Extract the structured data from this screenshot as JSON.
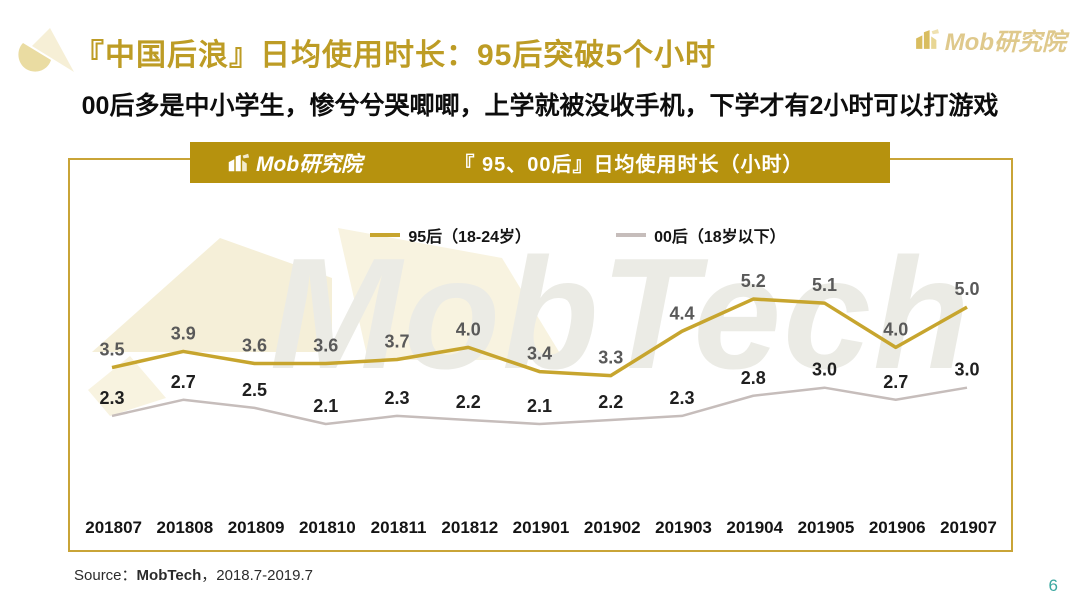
{
  "header": {
    "title": "『中国后浪』日均使用时长：95后突破5个小时",
    "subtitle": "00后多是中小学生，惨兮兮哭唧唧，上学就被没收手机，下学才有2小时可以打游戏"
  },
  "brand": {
    "name": "Mob研究院"
  },
  "card": {
    "logo_text": "Mob研究院",
    "title": "『 95、00后』日均使用时长（小时）",
    "watermark": "MobTech"
  },
  "chart_data": {
    "type": "line",
    "title": "『 95、00后』日均使用时长（小时）",
    "unit": "小时",
    "categories": [
      "201807",
      "201808",
      "201809",
      "201810",
      "201811",
      "201812",
      "201901",
      "201902",
      "201903",
      "201904",
      "201905",
      "201906",
      "201907"
    ],
    "series": [
      {
        "name": "95后（18-24岁）",
        "values": [
          3.5,
          3.9,
          3.6,
          3.6,
          3.7,
          4.0,
          3.4,
          3.3,
          4.4,
          5.2,
          5.1,
          4.0,
          5.0
        ],
        "color": "#C7A52E",
        "label_color": "#595959"
      },
      {
        "name": "00后（18岁以下）",
        "values": [
          2.3,
          2.7,
          2.5,
          2.1,
          2.3,
          2.2,
          2.1,
          2.2,
          2.3,
          2.8,
          3.0,
          2.7,
          3.0
        ],
        "color": "#C6BDBB",
        "label_color": "#1F1F1F"
      }
    ],
    "ylim": [
      2.0,
      5.6
    ],
    "grid": false,
    "legend_position": "top",
    "data_labels": true
  },
  "footer": {
    "source_prefix": "Source：",
    "source_brand": "MobTech",
    "source_range": "，2018.7-2019.7",
    "page": "6"
  },
  "colors": {
    "title_gold": "#BD9C25",
    "header_bar_gold": "#B6920E",
    "card_border_gold": "#C9A437",
    "brand_light_gold": "#DFC98C",
    "watermark_gray": "#EBEBE5",
    "page_number_teal": "#3BA8A0"
  }
}
